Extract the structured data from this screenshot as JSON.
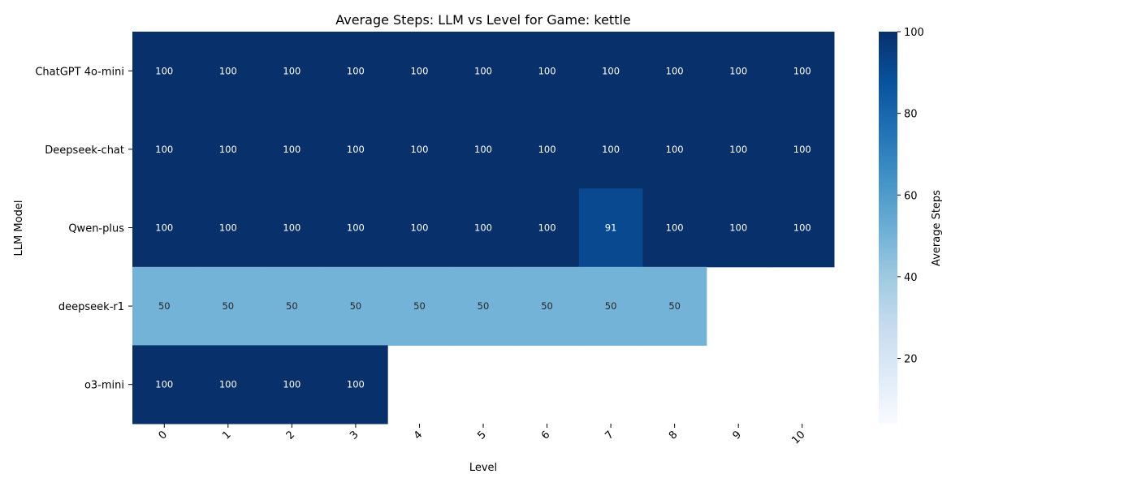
{
  "chart_data": {
    "type": "heatmap",
    "title": "Average Steps: LLM vs Level for Game: kettle",
    "xlabel": "Level",
    "ylabel": "LLM Model",
    "x_categories": [
      "0",
      "1",
      "2",
      "3",
      "4",
      "5",
      "6",
      "7",
      "8",
      "9",
      "10"
    ],
    "y_categories": [
      "ChatGPT 4o-mini",
      "Deepseek-chat",
      "Qwen-plus",
      "deepseek-r1",
      "o3-mini"
    ],
    "values": [
      [
        100,
        100,
        100,
        100,
        100,
        100,
        100,
        100,
        100,
        100,
        100
      ],
      [
        100,
        100,
        100,
        100,
        100,
        100,
        100,
        100,
        100,
        100,
        100
      ],
      [
        100,
        100,
        100,
        100,
        100,
        100,
        100,
        91,
        100,
        100,
        100
      ],
      [
        50,
        50,
        50,
        50,
        50,
        50,
        50,
        50,
        50,
        null,
        null
      ],
      [
        100,
        100,
        100,
        100,
        null,
        null,
        null,
        null,
        null,
        null,
        null
      ]
    ],
    "colorbar": {
      "label": "Average Steps",
      "range": [
        4,
        100
      ],
      "ticks": [
        20,
        40,
        60,
        80,
        100
      ],
      "colormap": "Blues"
    }
  }
}
